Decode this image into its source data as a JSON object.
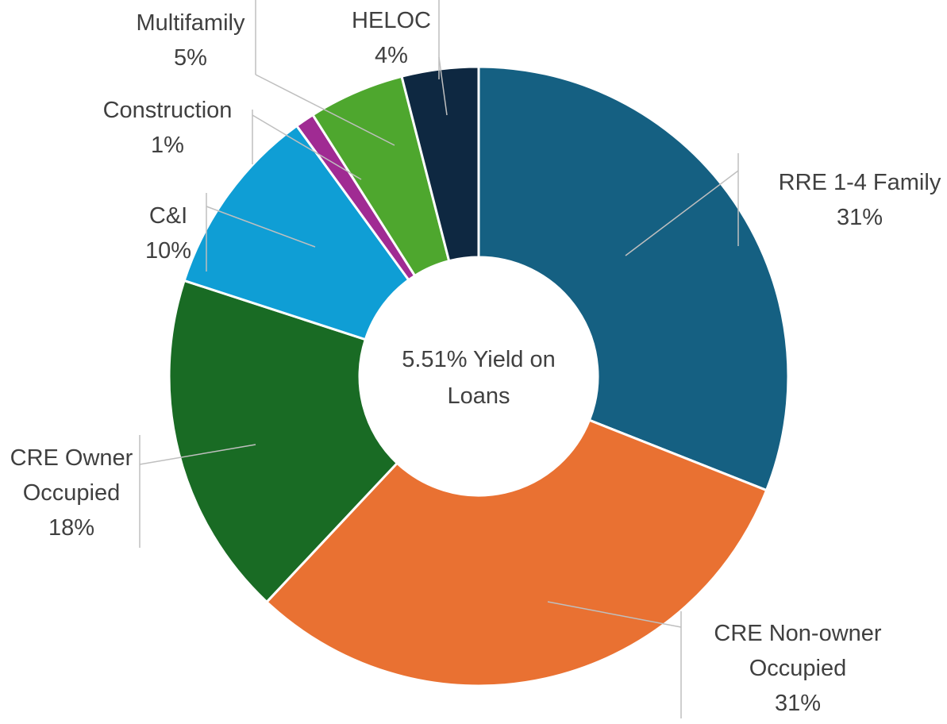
{
  "chart_data": {
    "type": "donut",
    "annotation": "5.51% Yield on Loans",
    "categories": [
      "RRE 1-4 Family",
      "CRE Non-owner Occupied",
      "CRE Owner Occupied",
      "C&I",
      "Construction",
      "Multifamily",
      "HELOC"
    ],
    "values": [
      31,
      31,
      18,
      10,
      1,
      5,
      4
    ],
    "value_labels": [
      "31%",
      "31%",
      "18%",
      "10%",
      "1%",
      "5%",
      "4%"
    ],
    "colors": [
      "#156082",
      "#e97132",
      "#196b24",
      "#0f9ed5",
      "#a02b93",
      "#4ea72e",
      "#0e2841"
    ]
  }
}
